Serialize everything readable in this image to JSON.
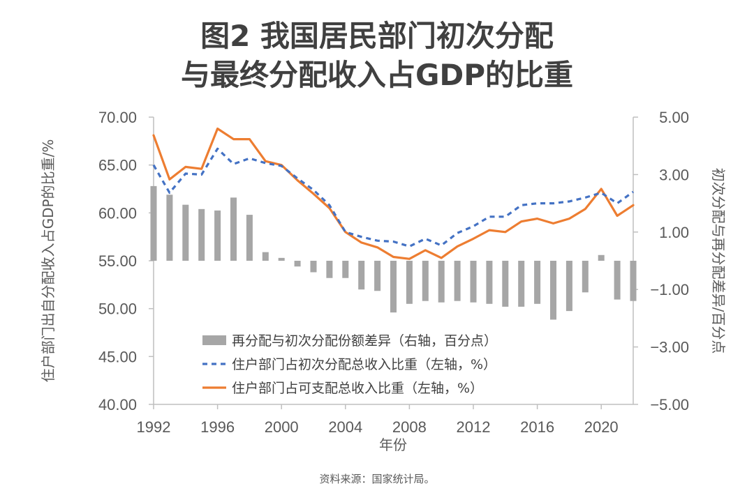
{
  "title_line1": "图2 我国居民部门初次分配",
  "title_line2": "与最终分配收入占GDP的比重",
  "source": "资料来源：国家统计局。",
  "colors": {
    "bar": "#a6a6a6",
    "dashed_line": "#4472c4",
    "solid_line": "#ed7d31",
    "axis": "#bfbfbf",
    "text": "#595959"
  },
  "chart_data": {
    "type": "bar+line",
    "title": "图2 我国居民部门初次分配与最终分配收入占GDP的比重",
    "xlabel": "年份",
    "ylabel_left": "住户部门出自分配收入占GDP的比重/%",
    "ylabel_right": "初次分配与再分配差异/百分点",
    "ylim_left": [
      40,
      70
    ],
    "ylim_right": [
      -5,
      5
    ],
    "yticks_left": [
      "70.00",
      "65.00",
      "60.00",
      "55.00",
      "50.00",
      "45.00",
      "40.00"
    ],
    "yticks_right": [
      "5.00",
      "3.00",
      "1.00",
      "-1.00",
      "-3.00",
      "-5.00"
    ],
    "xticks": [
      "1992",
      "1996",
      "2000",
      "2004",
      "2008",
      "2012",
      "2016",
      "2020"
    ],
    "years": [
      1992,
      1993,
      1994,
      1995,
      1996,
      1997,
      1998,
      1999,
      2000,
      2001,
      2002,
      2003,
      2004,
      2005,
      2006,
      2007,
      2008,
      2009,
      2010,
      2011,
      2012,
      2013,
      2014,
      2015,
      2016,
      2017,
      2018,
      2019,
      2020,
      2021,
      2022
    ],
    "legend_position": "lower-left",
    "series": [
      {
        "name": "再分配与初次分配份额差异（右轴，百分点）",
        "type": "bar",
        "axis": "right",
        "values": [
          2.6,
          2.3,
          1.95,
          1.8,
          1.75,
          2.2,
          1.6,
          0.3,
          0.1,
          -0.2,
          -0.4,
          -0.6,
          -0.6,
          -1.0,
          -1.05,
          -1.8,
          -1.5,
          -1.4,
          -1.45,
          -1.4,
          -1.45,
          -1.5,
          -1.6,
          -1.6,
          -1.5,
          -2.05,
          -1.75,
          -1.1,
          0.2,
          -1.35,
          -1.4
        ]
      },
      {
        "name": "住户部门占初次分配总收入比重（左轴，%）",
        "type": "line",
        "style": "dashed",
        "axis": "left",
        "values": [
          65.0,
          62.1,
          64.1,
          64.0,
          66.7,
          65.1,
          65.7,
          65.2,
          64.9,
          63.6,
          62.4,
          60.8,
          58.0,
          57.5,
          57.1,
          57.0,
          56.5,
          57.3,
          56.6,
          57.9,
          58.6,
          59.6,
          59.6,
          60.8,
          61.0,
          61.0,
          61.2,
          61.6,
          62.1,
          61.0,
          62.2
        ]
      },
      {
        "name": "住户部门占可支配总收入比重（左轴，%）",
        "type": "line",
        "style": "solid",
        "axis": "left",
        "values": [
          68.1,
          63.5,
          64.8,
          64.6,
          68.8,
          67.7,
          67.7,
          65.4,
          65.0,
          63.4,
          62.0,
          60.5,
          58.0,
          56.9,
          56.4,
          55.4,
          55.2,
          56.1,
          55.3,
          56.5,
          57.3,
          58.2,
          58.0,
          59.1,
          59.4,
          58.9,
          59.4,
          60.4,
          62.5,
          59.7,
          60.8
        ]
      }
    ]
  }
}
